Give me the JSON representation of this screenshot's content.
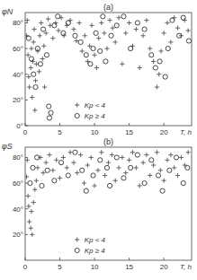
{
  "chart_data": [
    {
      "type": "scatter",
      "title": "(a)",
      "y_label": "φN",
      "x_label": "T, h",
      "xlim": [
        0,
        24
      ],
      "xticks": [
        0,
        5,
        10,
        15,
        20
      ],
      "ylim": [
        0,
        88
      ],
      "yticks": [
        {
          "value": 0,
          "label": "0°"
        },
        {
          "value": 20,
          "label": "20°"
        },
        {
          "value": 40,
          "label": "40°"
        },
        {
          "value": 60,
          "label": "60°"
        },
        {
          "value": 80,
          "label": "80°"
        }
      ],
      "grid": false,
      "legend": "bottom-right",
      "series": [
        {
          "name": "Kp < 4",
          "marker": "plus",
          "color": "#555555",
          "x": [
            0.2,
            0.4,
            0.5,
            0.6,
            0.8,
            0.9,
            1.0,
            1.1,
            1.2,
            1.3,
            1.5,
            1.6,
            1.8,
            2.0,
            2.1,
            2.3,
            2.5,
            2.7,
            3.0,
            3.3,
            3.6,
            4.0,
            4.4,
            4.8,
            5.2,
            5.6,
            6.0,
            6.5,
            7.0,
            7.4,
            7.8,
            8.2,
            8.6,
            9.0,
            9.3,
            9.6,
            10.0,
            10.3,
            10.6,
            11.0,
            11.4,
            11.8,
            12.2,
            12.6,
            13.0,
            13.5,
            14.0,
            14.5,
            15.0,
            15.5,
            16.0,
            16.5,
            17.0,
            17.5,
            18.0,
            18.5,
            19.0,
            19.3,
            19.6,
            20.0,
            20.5,
            21.0,
            21.5,
            22.0,
            22.5,
            23.0,
            23.5,
            1.4,
            0.3,
            2.8
          ],
          "values": [
            70,
            55,
            38,
            30,
            45,
            60,
            22,
            50,
            65,
            75,
            35,
            48,
            58,
            42,
            70,
            80,
            52,
            62,
            72,
            83,
            78,
            68,
            80,
            74,
            84,
            70,
            78,
            82,
            75,
            66,
            80,
            58,
            70,
            50,
            62,
            78,
            55,
            45,
            68,
            80,
            72,
            60,
            82,
            76,
            65,
            84,
            48,
            72,
            80,
            62,
            75,
            45,
            70,
            82,
            60,
            50,
            30,
            40,
            58,
            72,
            80,
            65,
            84,
            76,
            70,
            82,
            74,
            12,
            82,
            30
          ]
        },
        {
          "name": "Kp ≥ 4",
          "marker": "circle",
          "color": "#333333",
          "x": [
            0.5,
            0.9,
            1.2,
            1.5,
            1.8,
            2.2,
            2.6,
            3.1,
            3.5,
            3.7,
            4.2,
            4.7,
            5.5,
            6.2,
            7.2,
            8.0,
            8.8,
            9.4,
            9.8,
            10.2,
            10.8,
            11.2,
            11.6,
            12.4,
            13.2,
            14.2,
            15.2,
            16.2,
            17.2,
            18.2,
            18.8,
            19.4,
            20.2,
            20.6,
            21.2,
            22.2,
            22.8,
            23.6,
            3.4
          ],
          "values": [
            68,
            52,
            40,
            30,
            60,
            48,
            75,
            55,
            6,
            10,
            78,
            85,
            72,
            80,
            70,
            65,
            55,
            48,
            60,
            72,
            58,
            85,
            50,
            70,
            78,
            85,
            60,
            80,
            75,
            55,
            45,
            50,
            38,
            60,
            82,
            70,
            84,
            66,
            15
          ]
        }
      ]
    },
    {
      "type": "scatter",
      "title": "(b)",
      "y_label": "φS",
      "x_label": "T, h",
      "xlim": [
        0,
        24
      ],
      "xticks": [
        0,
        5,
        10,
        15,
        20
      ],
      "ylim": [
        0,
        88
      ],
      "yticks": [
        {
          "value": 20,
          "label": "20°"
        },
        {
          "value": 40,
          "label": "40°"
        },
        {
          "value": 60,
          "label": "60°"
        },
        {
          "value": 80,
          "label": "80°"
        }
      ],
      "grid": false,
      "legend": "bottom-right",
      "series": [
        {
          "name": "Kp < 4",
          "marker": "plus",
          "color": "#555555",
          "x": [
            0.2,
            0.4,
            0.5,
            0.6,
            0.8,
            0.9,
            1.0,
            1.2,
            1.4,
            1.6,
            1.8,
            2.2,
            2.6,
            3.0,
            3.5,
            4.0,
            4.5,
            5.0,
            5.5,
            6.0,
            6.5,
            7.0,
            7.5,
            8.0,
            8.5,
            9.0,
            9.5,
            10.0,
            10.5,
            11.0,
            11.5,
            12.0,
            12.5,
            13.0,
            13.5,
            14.0,
            14.5,
            15.0,
            15.5,
            16.0,
            16.5,
            17.0,
            17.5,
            18.0,
            18.5,
            19.0,
            19.5,
            20.0,
            20.5,
            21.0,
            21.5,
            22.0,
            22.5,
            23.0,
            23.5,
            0.3
          ],
          "values": [
            65,
            50,
            42,
            30,
            25,
            38,
            20,
            45,
            55,
            62,
            72,
            80,
            68,
            76,
            82,
            70,
            78,
            64,
            80,
            72,
            84,
            76,
            68,
            82,
            60,
            74,
            80,
            58,
            70,
            84,
            66,
            76,
            82,
            62,
            72,
            80,
            68,
            78,
            84,
            72,
            58,
            76,
            82,
            66,
            74,
            84,
            70,
            62,
            78,
            82,
            72,
            66,
            80,
            74,
            84,
            78
          ]
        },
        {
          "name": "Kp ≥ 4",
          "marker": "circle",
          "color": "#333333",
          "x": [
            0.7,
            1.1,
            1.7,
            2.4,
            3.2,
            4.2,
            5.2,
            6.2,
            7.2,
            8.2,
            8.8,
            9.8,
            10.8,
            11.8,
            12.2,
            13.2,
            14.2,
            15.2,
            16.2,
            17.2,
            18.2,
            19.2,
            19.8,
            20.8,
            21.8,
            22.8,
            23.4
          ],
          "values": [
            60,
            72,
            80,
            58,
            70,
            62,
            76,
            66,
            84,
            70,
            54,
            66,
            78,
            72,
            58,
            80,
            64,
            72,
            82,
            60,
            78,
            66,
            54,
            70,
            80,
            60,
            72
          ]
        }
      ]
    }
  ]
}
